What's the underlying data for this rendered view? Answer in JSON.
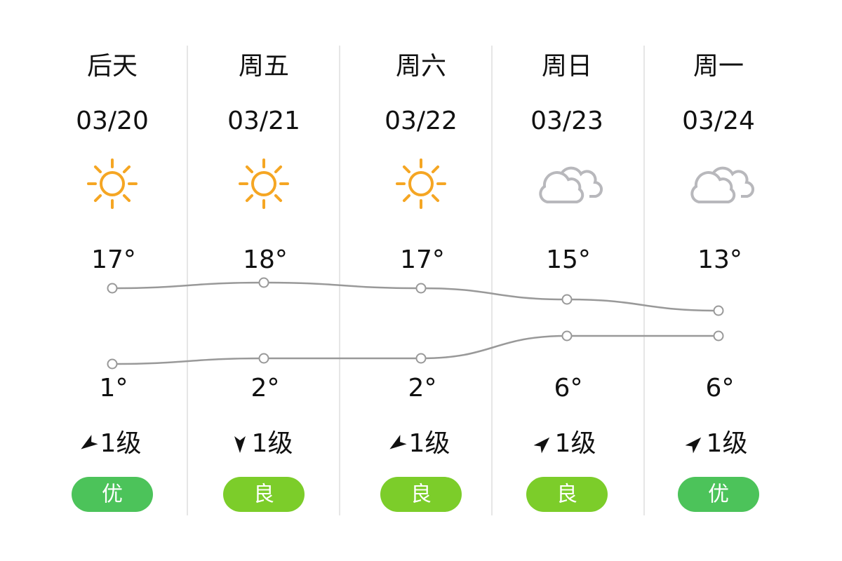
{
  "days": [
    {
      "label": "后天",
      "date": "03/20",
      "wind": "1级",
      "aqi": "优"
    },
    {
      "label": "周五",
      "date": "03/21",
      "wind": "1级",
      "aqi": "良"
    },
    {
      "label": "周六",
      "date": "03/22",
      "wind": "1级",
      "aqi": "良"
    },
    {
      "label": "周日",
      "date": "03/23",
      "wind": "1级",
      "aqi": "良"
    },
    {
      "label": "周一",
      "date": "03/24",
      "wind": "1级",
      "aqi": "优"
    }
  ],
  "temperature": {
    "high": {
      "values": [
        17,
        18,
        17,
        15,
        13
      ],
      "value_labels": [
        "17°",
        "18°",
        "17°",
        "15°",
        "13°"
      ]
    },
    "low": {
      "values": [
        1,
        2,
        2,
        6,
        6
      ],
      "value_labels": [
        "1°",
        "2°",
        "2°",
        "6°",
        "6°"
      ]
    }
  }
}
